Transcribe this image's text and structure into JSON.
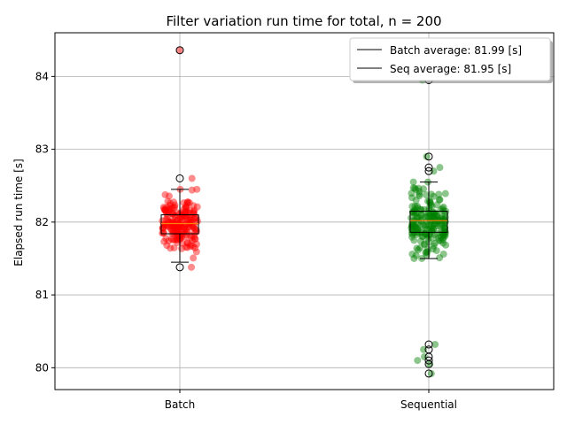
{
  "chart_data": {
    "type": "box+strip",
    "title": "Filter variation run time for total, n = 200",
    "ylabel": "Elapsed run time [s]",
    "xlabel": "",
    "ylim": [
      79.7,
      84.6
    ],
    "yticks": [
      80,
      81,
      82,
      83,
      84
    ],
    "ytick_labels": [
      "80",
      "81",
      "82",
      "83",
      "84"
    ],
    "grid": true,
    "categories": [
      "Batch",
      "Sequential"
    ],
    "legend": {
      "placement": "top-right",
      "entries": [
        {
          "label": "Batch average: 81.99 [s]"
        },
        {
          "label": "Seq average: 81.95 [s]"
        }
      ]
    },
    "series": [
      {
        "name": "Batch",
        "color": "#ff0000",
        "box": {
          "q1": 81.84,
          "median": 81.98,
          "q3": 82.1,
          "whisker_low": 81.45,
          "whisker_high": 82.45
        },
        "outliers": [
          84.36,
          82.6,
          81.38
        ],
        "n": 200
      },
      {
        "name": "Sequential",
        "color": "#008000",
        "box": {
          "q1": 81.86,
          "median": 82.02,
          "q3": 82.15,
          "whisker_low": 81.5,
          "whisker_high": 82.55
        },
        "outliers": [
          83.95,
          82.9,
          82.75,
          82.7,
          80.32,
          80.25,
          80.15,
          80.1,
          80.05,
          79.92
        ],
        "n": 200
      }
    ]
  }
}
